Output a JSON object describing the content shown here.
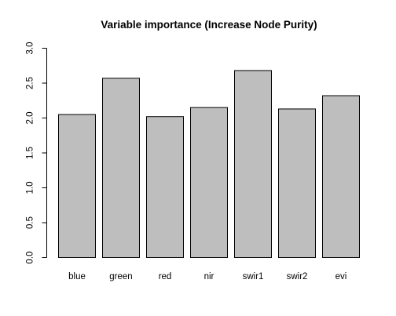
{
  "chart_data": {
    "type": "bar",
    "title": "Variable importance (Increase Node Purity)",
    "xlabel": "",
    "ylabel": "",
    "categories": [
      "blue",
      "green",
      "red",
      "nir",
      "swir1",
      "swir2",
      "evi"
    ],
    "values": [
      2.05,
      2.57,
      2.02,
      2.15,
      2.68,
      2.13,
      2.32
    ],
    "ylim": [
      0,
      3.0
    ],
    "yticks": [
      "0.0",
      "0.5",
      "1.0",
      "1.5",
      "2.0",
      "2.5",
      "3.0"
    ],
    "grid": false,
    "legend": "none",
    "bar_color": "#bebebe",
    "bar_border_color": "#000000",
    "axis_color": "#000000"
  }
}
